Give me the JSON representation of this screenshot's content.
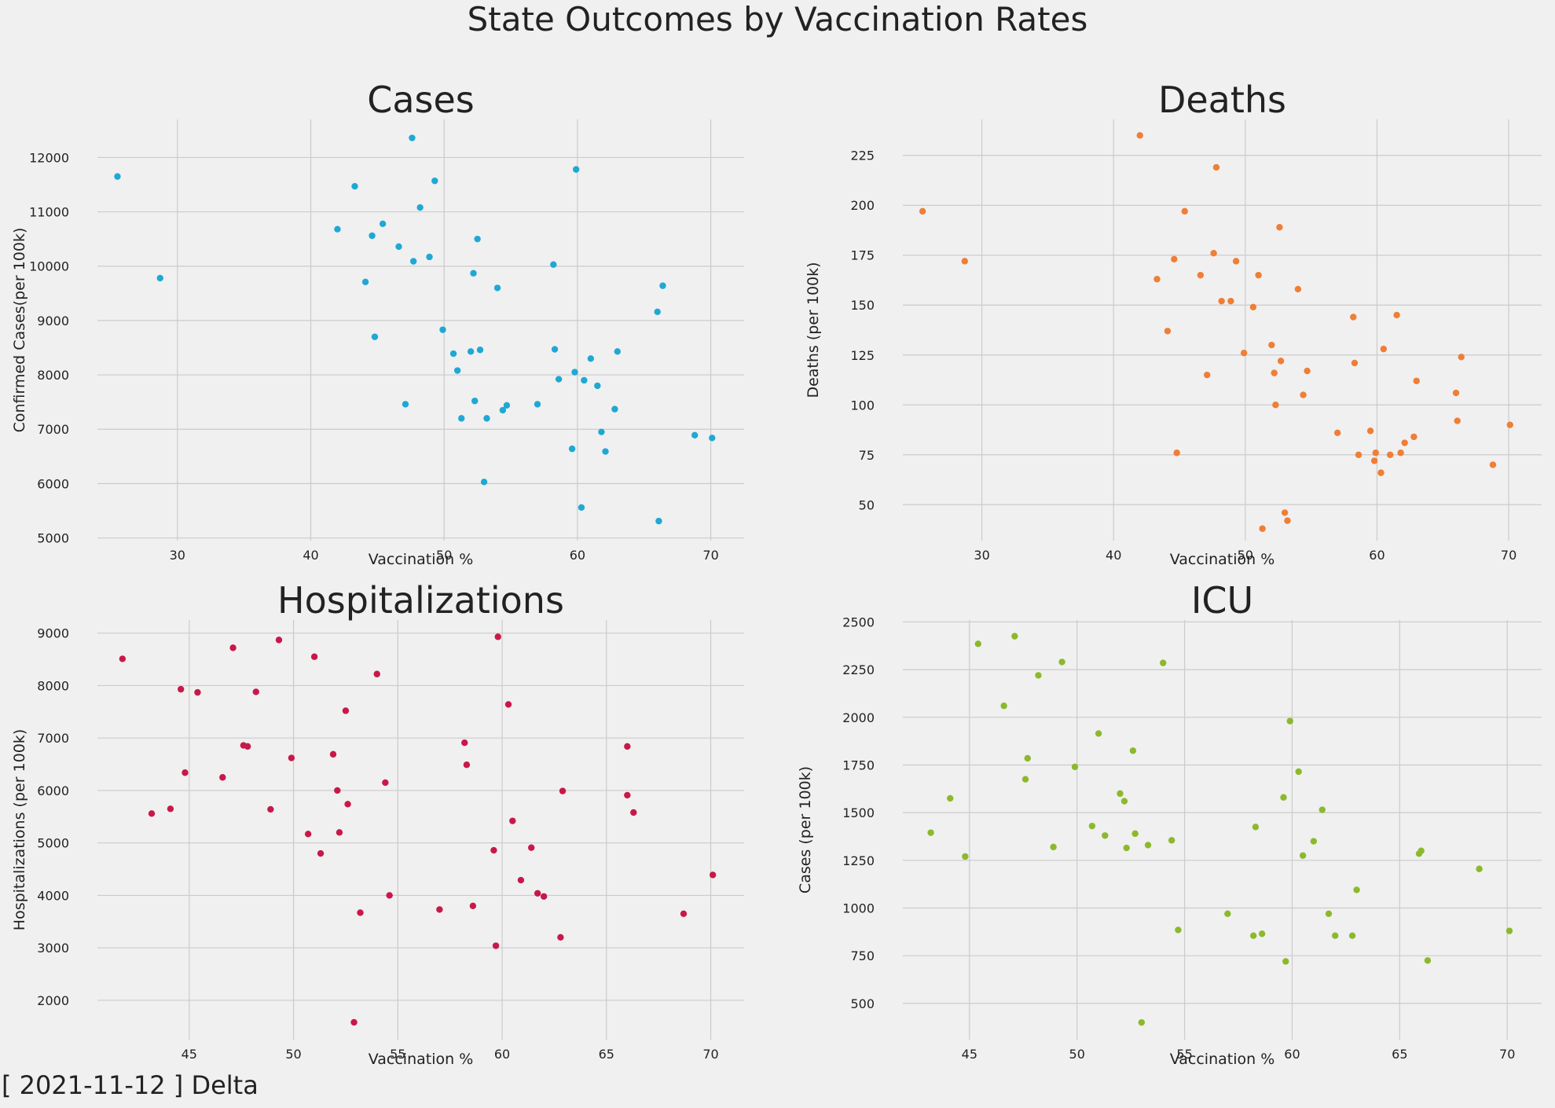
{
  "suptitle": "State Outcomes by Vaccination Rates",
  "footer": "[ 2021-11-12 ] Delta",
  "chart_data": [
    {
      "type": "scatter",
      "title": "Cases",
      "xlabel": "Vaccination %",
      "ylabel": "Confirmed Cases(per 100k)",
      "color": "#1fa8d4",
      "xlim": [
        24,
        72.5
      ],
      "ylim": [
        4950,
        12700
      ],
      "xticks": [
        30,
        40,
        50,
        60,
        70
      ],
      "yticks": [
        5000,
        6000,
        7000,
        8000,
        9000,
        10000,
        11000,
        12000
      ],
      "points": [
        [
          25.5,
          11650
        ],
        [
          28.7,
          9780
        ],
        [
          42.0,
          10680
        ],
        [
          43.3,
          11470
        ],
        [
          44.1,
          9710
        ],
        [
          44.6,
          10560
        ],
        [
          44.8,
          8700
        ],
        [
          45.4,
          10780
        ],
        [
          46.6,
          10360
        ],
        [
          47.1,
          7460
        ],
        [
          47.6,
          12360
        ],
        [
          47.7,
          10090
        ],
        [
          48.2,
          11080
        ],
        [
          48.9,
          10170
        ],
        [
          49.3,
          11570
        ],
        [
          49.9,
          8830
        ],
        [
          50.7,
          8390
        ],
        [
          51.0,
          8080
        ],
        [
          51.3,
          7200
        ],
        [
          52.0,
          8430
        ],
        [
          52.2,
          9870
        ],
        [
          52.3,
          7520
        ],
        [
          52.5,
          10500
        ],
        [
          52.7,
          8460
        ],
        [
          53.0,
          6030
        ],
        [
          53.2,
          7200
        ],
        [
          54.0,
          9600
        ],
        [
          54.4,
          7350
        ],
        [
          54.7,
          7440
        ],
        [
          57.0,
          7460
        ],
        [
          58.2,
          10030
        ],
        [
          58.3,
          8470
        ],
        [
          58.6,
          7920
        ],
        [
          59.6,
          6640
        ],
        [
          59.8,
          8050
        ],
        [
          59.9,
          11780
        ],
        [
          60.3,
          5560
        ],
        [
          60.5,
          7900
        ],
        [
          61.0,
          8300
        ],
        [
          61.5,
          7800
        ],
        [
          61.8,
          6950
        ],
        [
          62.1,
          6590
        ],
        [
          62.8,
          7370
        ],
        [
          63.0,
          8430
        ],
        [
          66.0,
          9160
        ],
        [
          66.1,
          5310
        ],
        [
          66.4,
          9640
        ],
        [
          68.8,
          6890
        ],
        [
          70.1,
          6840
        ]
      ]
    },
    {
      "type": "scatter",
      "title": "Deaths",
      "xlabel": "Vaccination %",
      "ylabel": "Deaths (per 100k)",
      "color": "#f07e34",
      "xlim": [
        24,
        72.5
      ],
      "ylim": [
        32,
        243
      ],
      "xticks": [
        30,
        40,
        50,
        60,
        70
      ],
      "yticks": [
        50,
        75,
        100,
        125,
        150,
        175,
        200,
        225
      ],
      "points": [
        [
          25.5,
          197
        ],
        [
          28.7,
          172
        ],
        [
          42.0,
          235
        ],
        [
          43.3,
          163
        ],
        [
          44.1,
          137
        ],
        [
          44.6,
          173
        ],
        [
          44.8,
          76
        ],
        [
          45.4,
          197
        ],
        [
          46.6,
          165
        ],
        [
          47.1,
          115
        ],
        [
          47.6,
          176
        ],
        [
          47.8,
          219
        ],
        [
          48.2,
          152
        ],
        [
          48.9,
          152
        ],
        [
          49.3,
          172
        ],
        [
          49.9,
          126
        ],
        [
          50.6,
          149
        ],
        [
          51.0,
          165
        ],
        [
          51.3,
          38
        ],
        [
          52.0,
          130
        ],
        [
          52.2,
          116
        ],
        [
          52.3,
          100
        ],
        [
          52.6,
          189
        ],
        [
          52.7,
          122
        ],
        [
          53.0,
          46
        ],
        [
          53.2,
          42
        ],
        [
          54.0,
          158
        ],
        [
          54.4,
          105
        ],
        [
          54.7,
          117
        ],
        [
          57.0,
          86
        ],
        [
          58.2,
          144
        ],
        [
          58.3,
          121
        ],
        [
          58.6,
          75
        ],
        [
          59.5,
          87
        ],
        [
          59.8,
          72
        ],
        [
          59.9,
          76
        ],
        [
          60.3,
          66
        ],
        [
          60.5,
          128
        ],
        [
          61.0,
          75
        ],
        [
          61.5,
          145
        ],
        [
          61.8,
          76
        ],
        [
          62.1,
          81
        ],
        [
          62.8,
          84
        ],
        [
          63.0,
          112
        ],
        [
          66.0,
          106
        ],
        [
          66.1,
          92
        ],
        [
          66.4,
          124
        ],
        [
          68.8,
          70
        ],
        [
          70.1,
          90
        ]
      ]
    },
    {
      "type": "scatter",
      "title": "Hospitalizations",
      "xlabel": "Vaccination %",
      "ylabel": "Hospitalizations (per 100k)",
      "color": "#c8184a",
      "xlim": [
        40.6,
        71.6
      ],
      "ylim": [
        1250,
        9250
      ],
      "xticks": [
        45,
        50,
        55,
        60,
        65,
        70
      ],
      "yticks": [
        2000,
        3000,
        4000,
        5000,
        6000,
        7000,
        8000,
        9000
      ],
      "points": [
        [
          41.8,
          8510
        ],
        [
          43.2,
          5560
        ],
        [
          44.1,
          5650
        ],
        [
          44.6,
          7930
        ],
        [
          44.8,
          6340
        ],
        [
          45.4,
          7870
        ],
        [
          46.6,
          6250
        ],
        [
          47.1,
          8720
        ],
        [
          47.6,
          6860
        ],
        [
          47.8,
          6840
        ],
        [
          48.2,
          7880
        ],
        [
          48.9,
          5640
        ],
        [
          49.3,
          8870
        ],
        [
          49.9,
          6620
        ],
        [
          50.7,
          5170
        ],
        [
          51.0,
          8550
        ],
        [
          51.3,
          4800
        ],
        [
          51.9,
          6690
        ],
        [
          52.1,
          6000
        ],
        [
          52.2,
          5200
        ],
        [
          52.5,
          7520
        ],
        [
          52.6,
          5740
        ],
        [
          52.9,
          1580
        ],
        [
          53.2,
          3670
        ],
        [
          54.0,
          8220
        ],
        [
          54.4,
          6150
        ],
        [
          54.6,
          4000
        ],
        [
          57.0,
          3730
        ],
        [
          58.2,
          6910
        ],
        [
          58.3,
          6490
        ],
        [
          58.6,
          3800
        ],
        [
          59.6,
          4860
        ],
        [
          59.7,
          3040
        ],
        [
          59.8,
          8930
        ],
        [
          60.3,
          7640
        ],
        [
          60.5,
          5420
        ],
        [
          60.9,
          4290
        ],
        [
          61.4,
          4910
        ],
        [
          61.7,
          4040
        ],
        [
          62.0,
          3980
        ],
        [
          62.8,
          3200
        ],
        [
          62.9,
          5990
        ],
        [
          66.0,
          6840
        ],
        [
          66.0,
          5910
        ],
        [
          66.3,
          5580
        ],
        [
          68.7,
          3650
        ],
        [
          70.1,
          4390
        ]
      ]
    },
    {
      "type": "scatter",
      "title": "ICU",
      "xlabel": "Vaccination %",
      "ylabel": "Cases (per 100k)",
      "color": "#8cb92c",
      "xlim": [
        41.9,
        71.6
      ],
      "ylim": [
        310,
        2510
      ],
      "xticks": [
        45,
        50,
        55,
        60,
        65,
        70
      ],
      "yticks": [
        500,
        750,
        1000,
        1250,
        1500,
        1750,
        2000,
        2250,
        2500
      ],
      "points": [
        [
          43.2,
          1395
        ],
        [
          44.1,
          1575
        ],
        [
          44.8,
          1270
        ],
        [
          45.4,
          2385
        ],
        [
          46.6,
          2060
        ],
        [
          47.1,
          2425
        ],
        [
          47.6,
          1675
        ],
        [
          47.7,
          1785
        ],
        [
          48.2,
          2220
        ],
        [
          48.9,
          1320
        ],
        [
          49.3,
          2290
        ],
        [
          49.9,
          1740
        ],
        [
          50.7,
          1430
        ],
        [
          51.0,
          1915
        ],
        [
          51.3,
          1380
        ],
        [
          52.0,
          1600
        ],
        [
          52.2,
          1560
        ],
        [
          52.3,
          1315
        ],
        [
          52.6,
          1825
        ],
        [
          52.7,
          1390
        ],
        [
          53.0,
          400
        ],
        [
          53.3,
          1330
        ],
        [
          54.0,
          2285
        ],
        [
          54.4,
          1355
        ],
        [
          54.7,
          885
        ],
        [
          57.0,
          970
        ],
        [
          58.2,
          855
        ],
        [
          58.3,
          1425
        ],
        [
          58.6,
          865
        ],
        [
          59.6,
          1580
        ],
        [
          59.7,
          720
        ],
        [
          59.9,
          1980
        ],
        [
          60.3,
          1715
        ],
        [
          60.5,
          1275
        ],
        [
          61.0,
          1350
        ],
        [
          61.4,
          1515
        ],
        [
          61.7,
          970
        ],
        [
          62.0,
          855
        ],
        [
          62.8,
          855
        ],
        [
          63.0,
          1095
        ],
        [
          65.9,
          1285
        ],
        [
          66.0,
          1300
        ],
        [
          66.3,
          725
        ],
        [
          68.7,
          1205
        ],
        [
          70.1,
          880
        ]
      ]
    }
  ]
}
